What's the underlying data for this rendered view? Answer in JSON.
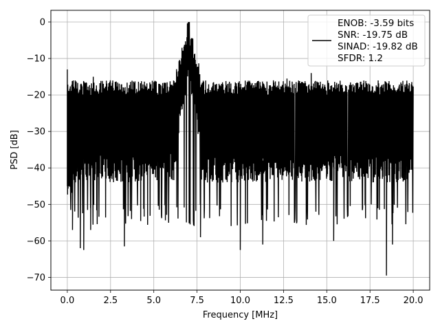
{
  "chart_data": {
    "type": "line",
    "xlabel": "Frequency [MHz]",
    "ylabel": "PSD [dB]",
    "xlim": [
      -0.95,
      20.95
    ],
    "ylim": [
      -73.5,
      3.2
    ],
    "xticks": [
      0.0,
      2.5,
      5.0,
      7.5,
      10.0,
      12.5,
      15.0,
      17.5,
      20.0
    ],
    "xtick_labels": [
      "0.0",
      "2.5",
      "5.0",
      "7.5",
      "10.0",
      "12.5",
      "15.0",
      "17.5",
      "20.0"
    ],
    "yticks": [
      0,
      -10,
      -20,
      -30,
      -40,
      -50,
      -60,
      -70
    ],
    "ytick_labels": [
      "0",
      "−10",
      "−20",
      "−30",
      "−40",
      "−50",
      "−60",
      "−70"
    ],
    "grid": true,
    "legend_position": "top-right",
    "series": [
      {
        "name": "ENOB: -3.59 bits\nSNR: -19.75 dB\nSINAD: -19.82 dB\nSFDR: 1.2",
        "color": "#000000",
        "x_range": [
          0,
          20
        ],
        "noise_floor_upper_db": -17,
        "noise_floor_lower_db": -48,
        "peak": {
          "x": 7.0,
          "y": 0
        },
        "dc_spike": {
          "x": 0.0,
          "y": -13
        },
        "deep_nulls": [
          {
            "x": 0.3,
            "y": -57
          },
          {
            "x": 0.75,
            "y": -62
          },
          {
            "x": 0.95,
            "y": -62.5
          },
          {
            "x": 1.35,
            "y": -57
          },
          {
            "x": 3.3,
            "y": -61.5
          },
          {
            "x": 7.7,
            "y": -59
          },
          {
            "x": 10.0,
            "y": -62.5
          },
          {
            "x": 11.3,
            "y": -61
          },
          {
            "x": 15.4,
            "y": -60
          },
          {
            "x": 18.8,
            "y": -61
          },
          {
            "x": 18.45,
            "y": -69.5
          }
        ],
        "spurs": [
          {
            "x": 1.5,
            "y": -15
          },
          {
            "x": 12.7,
            "y": -15.5
          },
          {
            "x": 14.1,
            "y": -14
          }
        ]
      }
    ]
  }
}
